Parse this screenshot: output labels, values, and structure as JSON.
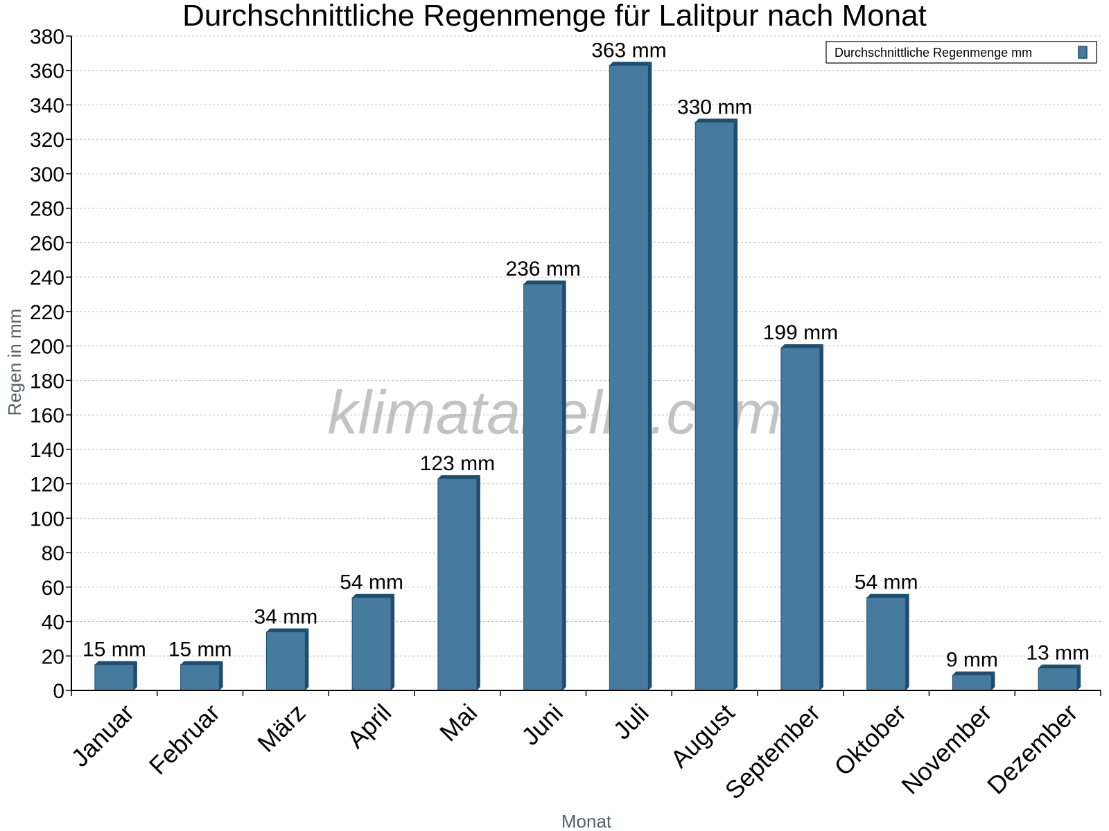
{
  "chart_data": {
    "type": "bar",
    "title": "Durchschnittliche Regenmenge für Lalitpur nach Monat",
    "xlabel": "Monat",
    "ylabel": "Regen in mm",
    "categories": [
      "Januar",
      "Februar",
      "März",
      "April",
      "Mai",
      "Juni",
      "Juli",
      "August",
      "September",
      "Oktober",
      "November",
      "Dezember"
    ],
    "series": [
      {
        "name": "Durchschnittliche Regenmenge mm",
        "values": [
          15,
          15,
          34,
          54,
          123,
          236,
          363,
          330,
          199,
          54,
          9,
          13
        ],
        "labels": [
          "15 mm",
          "15 mm",
          "34 mm",
          "54 mm",
          "123 mm",
          "236 mm",
          "363 mm",
          "330 mm",
          "199 mm",
          "54 mm",
          "9 mm",
          "13 mm"
        ],
        "color": "#467b9e",
        "shade_color": "#1f4d6e"
      }
    ],
    "ylim": [
      0,
      380
    ],
    "yticks": [
      0,
      20,
      40,
      60,
      80,
      100,
      120,
      140,
      160,
      180,
      200,
      220,
      240,
      260,
      280,
      300,
      320,
      340,
      360,
      380
    ],
    "grid": true,
    "legend_position": "top-right",
    "watermark": "klimatabelle.com"
  }
}
